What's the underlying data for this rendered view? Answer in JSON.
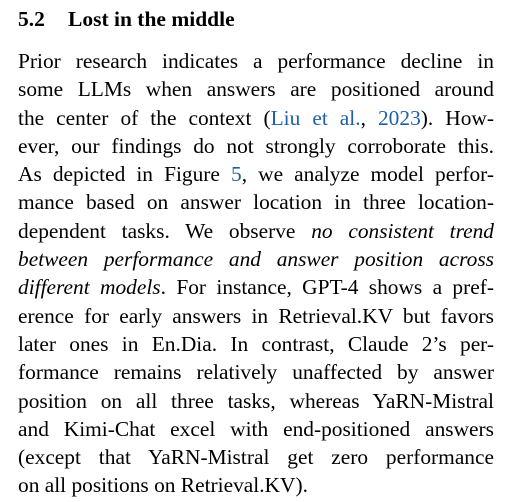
{
  "section": {
    "number": "5.2",
    "title": "Lost in the middle"
  },
  "paragraph": {
    "lines": [
      {
        "segments": [
          {
            "text": "Prior research indicates a performance decline in"
          }
        ]
      },
      {
        "segments": [
          {
            "text": "some LLMs when answers are positioned around"
          }
        ]
      },
      {
        "segments": [
          {
            "text": "the center of the context ("
          },
          {
            "text": "Liu et al.",
            "style": "link"
          },
          {
            "text": ", "
          },
          {
            "text": "2023",
            "style": "link"
          },
          {
            "text": "). How-"
          }
        ]
      },
      {
        "segments": [
          {
            "text": "ever, our findings do not strongly corroborate this."
          }
        ]
      },
      {
        "segments": [
          {
            "text": "As depicted in Figure "
          },
          {
            "text": "5",
            "style": "link"
          },
          {
            "text": ", we analyze model perfor-"
          }
        ]
      },
      {
        "segments": [
          {
            "text": "mance based on answer location in three location-"
          }
        ]
      },
      {
        "segments": [
          {
            "text": "dependent tasks. We observe "
          },
          {
            "text": "no consistent trend",
            "style": "italic"
          }
        ]
      },
      {
        "segments": [
          {
            "text": "between performance and answer position across",
            "style": "italic"
          }
        ]
      },
      {
        "segments": [
          {
            "text": "different models",
            "style": "italic"
          },
          {
            "text": ". For instance, GPT-4 shows a pref-"
          }
        ]
      },
      {
        "segments": [
          {
            "text": "erence for early answers in Retrieval.KV but favors"
          }
        ]
      },
      {
        "segments": [
          {
            "text": "later ones in En.Dia. In contrast, Claude 2’s per-"
          }
        ]
      },
      {
        "segments": [
          {
            "text": "formance remains relatively unaffected by answer"
          }
        ]
      },
      {
        "segments": [
          {
            "text": "position on all three tasks, whereas YaRN-Mistral"
          }
        ]
      },
      {
        "segments": [
          {
            "text": "and Kimi-Chat excel with end-positioned answers"
          }
        ]
      },
      {
        "segments": [
          {
            "text": "(except that YaRN-Mistral get zero performance"
          }
        ]
      },
      {
        "segments": [
          {
            "text": "on all positions on Retrieval.KV)."
          }
        ]
      }
    ]
  }
}
